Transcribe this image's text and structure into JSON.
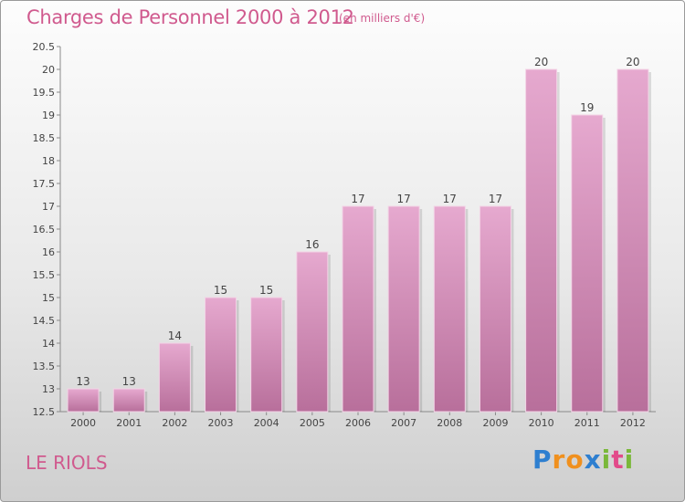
{
  "title": "Charges de Personnel 2000 à 2012",
  "subtitle": "(en milliers d'€)",
  "location": "LE RIOLS",
  "logo": {
    "text": "Proxiti",
    "letters": [
      {
        "ch": "P",
        "color": "#2e7fd0"
      },
      {
        "ch": "r",
        "color": "#f0901e"
      },
      {
        "ch": "o",
        "color": "#f0901e"
      },
      {
        "ch": "x",
        "color": "#2e7fd0"
      },
      {
        "ch": "i",
        "color": "#7ab83a"
      },
      {
        "ch": "t",
        "color": "#e24a8a"
      },
      {
        "ch": "i",
        "color": "#7ab83a"
      }
    ]
  },
  "colors": {
    "bar_top": "#e6a9cf",
    "bar_bottom": "#b86f9b",
    "accent": "#d05a8e"
  },
  "chart_data": {
    "type": "bar",
    "categories": [
      "2000",
      "2001",
      "2002",
      "2003",
      "2004",
      "2005",
      "2006",
      "2007",
      "2008",
      "2009",
      "2010",
      "2011",
      "2012"
    ],
    "values": [
      13,
      13,
      14,
      15,
      15,
      16,
      17,
      17,
      17,
      17,
      20,
      19,
      20
    ],
    "value_labels": [
      "13",
      "13",
      "14",
      "15",
      "15",
      "16",
      "17",
      "17",
      "17",
      "17",
      "20",
      "19",
      "20"
    ],
    "ylim": [
      12.5,
      20.5
    ],
    "yticks": [
      "12.5",
      "13",
      "13.5",
      "14",
      "14.5",
      "15",
      "15.5",
      "16",
      "16.5",
      "17",
      "17.5",
      "18",
      "18.5",
      "19",
      "19.5",
      "20",
      "20.5"
    ],
    "grid": false
  }
}
